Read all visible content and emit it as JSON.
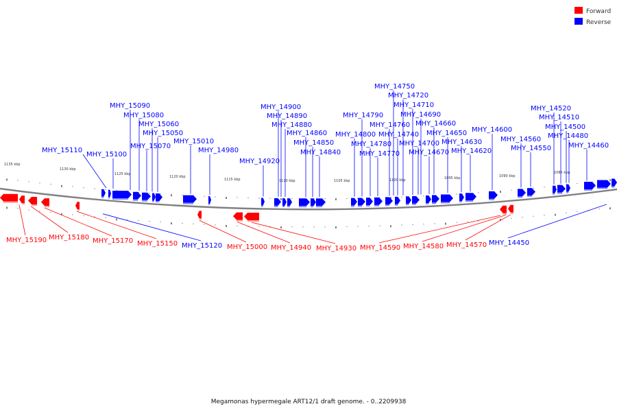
{
  "legend": [
    {
      "label": "Forward",
      "color": "#ff0000"
    },
    {
      "label": "Reverse",
      "color": "#0000ff"
    }
  ],
  "caption": "Megamonas hypermegale ART12/1 draft genome. - 0..2209938",
  "colors": {
    "forward": "#ff0000",
    "reverse": "#0000ff",
    "backbone": "#808080"
  },
  "scale_ticks": [
    "1135 kbp",
    "1130 kbp",
    "1125 kbp",
    "1120 kbp",
    "1115 kbp",
    "1110 kbp",
    "1105 kbp",
    "1100 kbp",
    "1095 kbp",
    "1090 kbp",
    "1085 kbp"
  ],
  "reverse_labels": [
    "MHY_15110",
    "MHY_15100",
    "MHY_15090",
    "MHY_15080",
    "MHY_15070",
    "MHY_15060",
    "MHY_15050",
    "MHY_15010",
    "MHY_14980",
    "MHY_14920",
    "MHY_14900",
    "MHY_14890",
    "MHY_14880",
    "MHY_14860",
    "MHY_14850",
    "MHY_14840",
    "MHY_14800",
    "MHY_14790",
    "MHY_14780",
    "MHY_14770",
    "MHY_14760",
    "MHY_14750",
    "MHY_14740",
    "MHY_14720",
    "MHY_14710",
    "MHY_14700",
    "MHY_14690",
    "MHY_14670",
    "MHY_14660",
    "MHY_14650",
    "MHY_14630",
    "MHY_14620",
    "MHY_14600",
    "MHY_14560",
    "MHY_14550",
    "MHY_14520",
    "MHY_14510",
    "MHY_14500",
    "MHY_14480",
    "MHY_14460",
    "MHY_15120",
    "MHY_14450"
  ],
  "forward_labels": [
    "MHY_15190",
    "MHY_15180",
    "MHY_15170",
    "MHY_15150",
    "MHY_15000",
    "MHY_14940",
    "MHY_14930",
    "MHY_14590",
    "MHY_14580",
    "MHY_14570"
  ]
}
